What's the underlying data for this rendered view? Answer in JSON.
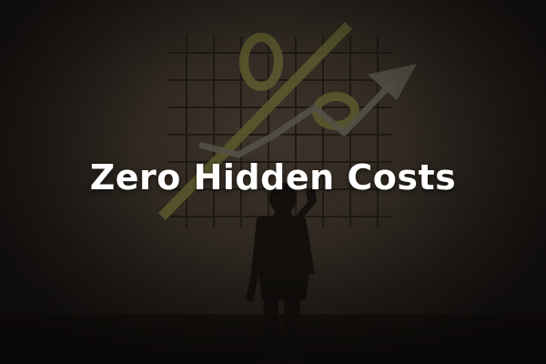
{
  "headline": "Zero Hidden Costs",
  "scene": {
    "symbol": "%",
    "symbol_color": "#8a8a3a",
    "grid_color": "#2a231b",
    "arrow_color": "#6f6a5c",
    "text_color": "#ffffff"
  }
}
